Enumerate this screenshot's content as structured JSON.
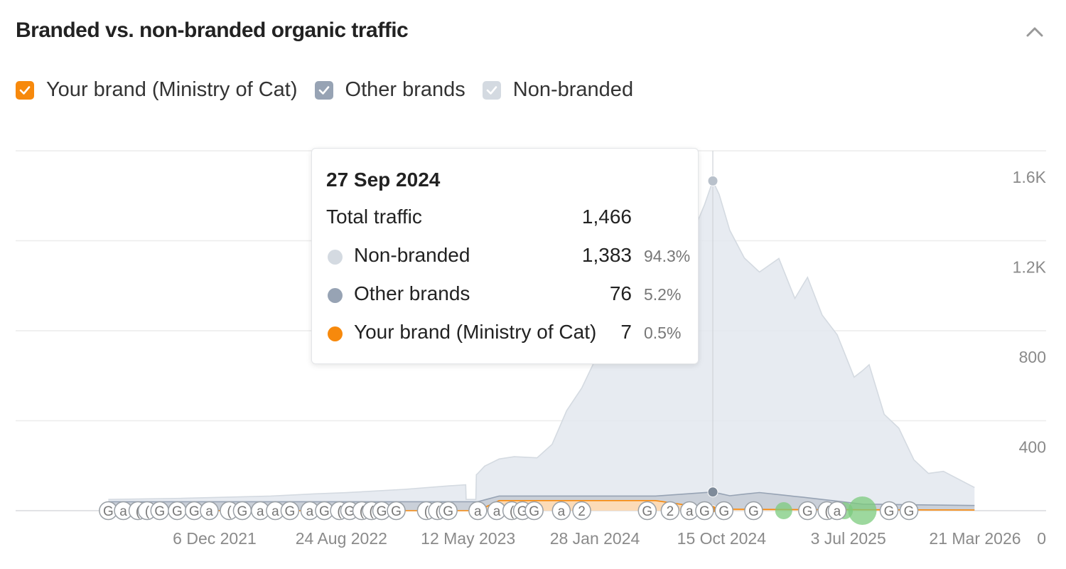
{
  "panel": {
    "title": "Branded vs. non-branded organic traffic"
  },
  "legend": [
    {
      "label": "Your brand (Ministry of Cat)",
      "color": "#f7890c",
      "checked": true
    },
    {
      "label": "Other brands",
      "color": "#97a3b4",
      "checked": true
    },
    {
      "label": "Non-branded",
      "color": "#d4dae1",
      "checked": true
    }
  ],
  "icons": {
    "collapse": "chevron-up-icon",
    "checkbox": "check-icon",
    "google_update": "G",
    "ahrefs_update": "a"
  },
  "tooltip": {
    "date": "27 Sep 2024",
    "total_label": "Total traffic",
    "total_value": "1,466",
    "rows": [
      {
        "label": "Non-branded",
        "value": "1,383",
        "percent": "94.3%",
        "color": "#d4dae1"
      },
      {
        "label": "Other brands",
        "value": "76",
        "percent": "5.2%",
        "color": "#97a3b4"
      },
      {
        "label": "Your brand (Ministry of Cat)",
        "value": "7",
        "percent": "0.5%",
        "color": "#f7890c"
      }
    ]
  },
  "chart_data": {
    "type": "area",
    "stacked": true,
    "title": "Branded vs. non-branded organic traffic",
    "xlabel": "",
    "ylabel": "",
    "x_ticks": [
      "6 Dec 2021",
      "24 Aug 2022",
      "12 May 2023",
      "28 Jan 2024",
      "15 Oct 2024",
      "3 Jul 2025",
      "21 Mar 2026"
    ],
    "y_ticks": [
      {
        "value": 0,
        "label": "0"
      },
      {
        "value": 400,
        "label": "400"
      },
      {
        "value": 800,
        "label": "800"
      },
      {
        "value": 1200,
        "label": "1.2K"
      },
      {
        "value": 1600,
        "label": "1.6K"
      }
    ],
    "ylim": [
      0,
      1600
    ],
    "xlim": [
      "2021-05-01",
      "2026-03-31"
    ],
    "grid": true,
    "legend_position": "top-left",
    "hover_date": "2024-09-27",
    "series": [
      {
        "name": "Your brand (Ministry of Cat)",
        "color": "#f7890c",
        "points": [
          [
            "2021-05-01",
            0
          ],
          [
            "2023-06-01",
            0
          ],
          [
            "2023-07-15",
            45
          ],
          [
            "2024-06-01",
            45
          ],
          [
            "2024-09-27",
            7
          ],
          [
            "2025-03-01",
            5
          ],
          [
            "2026-03-20",
            3
          ]
        ]
      },
      {
        "name": "Other brands",
        "color": "#97a3b4",
        "points": [
          [
            "2021-05-01",
            40
          ],
          [
            "2023-06-01",
            40
          ],
          [
            "2023-07-15",
            20
          ],
          [
            "2024-06-01",
            20
          ],
          [
            "2024-09-27",
            76
          ],
          [
            "2024-11-01",
            60
          ],
          [
            "2025-01-01",
            75
          ],
          [
            "2025-04-01",
            55
          ],
          [
            "2025-08-01",
            25
          ],
          [
            "2026-03-20",
            20
          ]
        ]
      },
      {
        "name": "Non-branded",
        "color": "#d4dae1",
        "points": [
          [
            "2021-05-01",
            10
          ],
          [
            "2021-10-01",
            15
          ],
          [
            "2022-04-01",
            25
          ],
          [
            "2022-07-01",
            35
          ],
          [
            "2022-09-01",
            40
          ],
          [
            "2023-01-01",
            55
          ],
          [
            "2023-04-01",
            70
          ],
          [
            "2023-05-07",
            75
          ],
          [
            "2023-05-08",
            10
          ],
          [
            "2023-05-28",
            10
          ],
          [
            "2023-05-29",
            120
          ],
          [
            "2023-06-15",
            150
          ],
          [
            "2023-07-15",
            165
          ],
          [
            "2023-08-15",
            175
          ],
          [
            "2023-10-01",
            170
          ],
          [
            "2023-11-01",
            230
          ],
          [
            "2023-12-01",
            380
          ],
          [
            "2024-01-01",
            480
          ],
          [
            "2024-02-01",
            620
          ],
          [
            "2024-04-01",
            820
          ],
          [
            "2024-06-01",
            950
          ],
          [
            "2024-07-15",
            1020
          ],
          [
            "2024-08-15",
            1150
          ],
          [
            "2024-09-10",
            1280
          ],
          [
            "2024-09-27",
            1383
          ],
          [
            "2024-10-10",
            1330
          ],
          [
            "2024-11-01",
            1180
          ],
          [
            "2024-12-01",
            1050
          ],
          [
            "2025-01-01",
            980
          ],
          [
            "2025-02-10",
            1050
          ],
          [
            "2025-03-15",
            880
          ],
          [
            "2025-04-10",
            980
          ],
          [
            "2025-05-10",
            820
          ],
          [
            "2025-06-10",
            740
          ],
          [
            "2025-07-15",
            560
          ],
          [
            "2025-08-15",
            620
          ],
          [
            "2025-09-15",
            400
          ],
          [
            "2025-10-15",
            340
          ],
          [
            "2025-11-15",
            200
          ],
          [
            "2025-12-15",
            140
          ],
          [
            "2026-01-15",
            150
          ],
          [
            "2026-03-20",
            80
          ]
        ]
      }
    ],
    "annotations": [
      {
        "date": "2021-05-01",
        "label": "G"
      },
      {
        "date": "2021-06-01",
        "label": "a"
      },
      {
        "date": "2021-07-01",
        "label": "("
      },
      {
        "date": "2021-07-20",
        "label": "("
      },
      {
        "date": "2021-08-15",
        "label": "G"
      },
      {
        "date": "2021-09-20",
        "label": "G"
      },
      {
        "date": "2021-10-25",
        "label": "G"
      },
      {
        "date": "2021-11-25",
        "label": "a"
      },
      {
        "date": "2022-01-05",
        "label": "("
      },
      {
        "date": "2022-02-01",
        "label": "G"
      },
      {
        "date": "2022-03-10",
        "label": "a"
      },
      {
        "date": "2022-04-10",
        "label": "a"
      },
      {
        "date": "2022-05-10",
        "label": "G"
      },
      {
        "date": "2022-06-20",
        "label": "a"
      },
      {
        "date": "2022-07-20",
        "label": "G"
      },
      {
        "date": "2022-08-20",
        "label": "("
      },
      {
        "date": "2022-09-10",
        "label": "G"
      },
      {
        "date": "2022-10-05",
        "label": "("
      },
      {
        "date": "2022-10-25",
        "label": "("
      },
      {
        "date": "2022-11-15",
        "label": "G"
      },
      {
        "date": "2022-12-15",
        "label": "G"
      },
      {
        "date": "2023-02-15",
        "label": "("
      },
      {
        "date": "2023-03-10",
        "label": "("
      },
      {
        "date": "2023-04-01",
        "label": "G"
      },
      {
        "date": "2023-06-01",
        "label": "a"
      },
      {
        "date": "2023-07-10",
        "label": "a"
      },
      {
        "date": "2023-08-10",
        "label": "("
      },
      {
        "date": "2023-09-01",
        "label": "G"
      },
      {
        "date": "2023-09-25",
        "label": "G"
      },
      {
        "date": "2023-11-20",
        "label": "a"
      },
      {
        "date": "2024-01-01",
        "label": "2"
      },
      {
        "date": "2024-05-15",
        "label": "G"
      },
      {
        "date": "2024-07-01",
        "label": "2"
      },
      {
        "date": "2024-08-10",
        "label": "a"
      },
      {
        "date": "2024-09-10",
        "label": "G"
      },
      {
        "date": "2024-10-20",
        "label": "G"
      },
      {
        "date": "2024-12-20",
        "label": "G"
      },
      {
        "date": "2025-04-10",
        "label": "G"
      },
      {
        "date": "2025-05-20",
        "label": "("
      },
      {
        "date": "2025-06-10",
        "label": "a"
      },
      {
        "date": "2025-09-25",
        "label": "G"
      },
      {
        "date": "2025-11-05",
        "label": "G"
      }
    ]
  }
}
